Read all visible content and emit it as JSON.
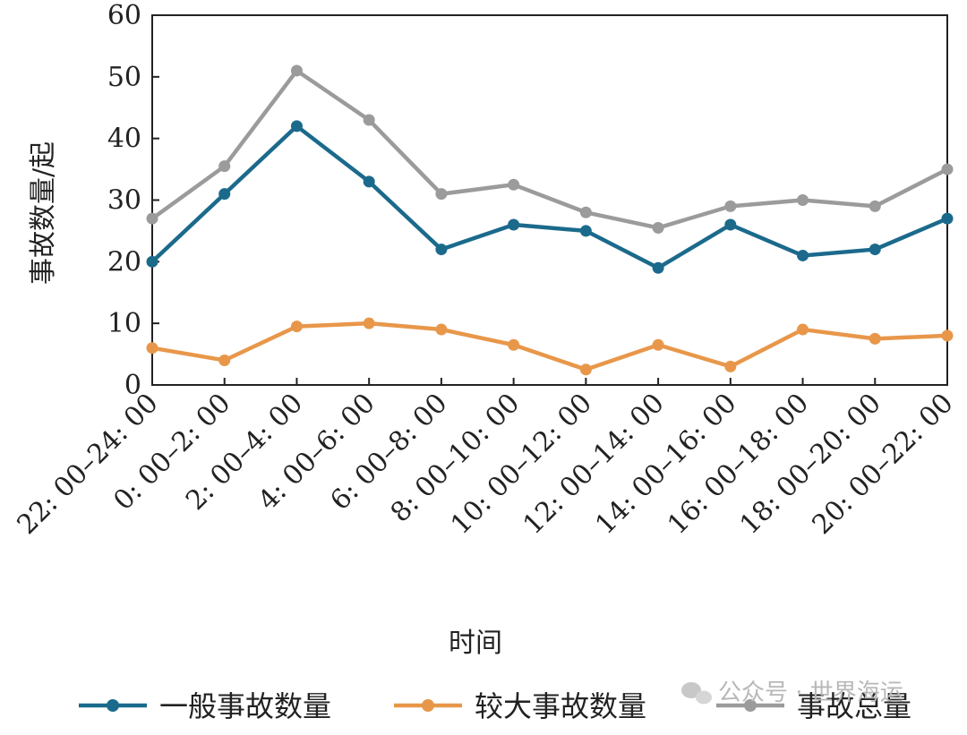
{
  "chart_data": {
    "type": "line",
    "categories": [
      "22: 00–24: 00",
      "0: 00–2: 00",
      "2: 00–4: 00",
      "4: 00–6: 00",
      "6: 00–8: 00",
      "8: 00–10: 00",
      "10: 00–12: 00",
      "12: 00–14: 00",
      "14: 00–16: 00",
      "16: 00–18: 00",
      "18: 00–20: 00",
      "20: 00–22: 00"
    ],
    "series": [
      {
        "name": "一般事故数量",
        "color": "#1b6a8c",
        "values": [
          20,
          31,
          42,
          33,
          22,
          26,
          25,
          19,
          26,
          21,
          22,
          27
        ]
      },
      {
        "name": "较大事故数量",
        "color": "#e8974a",
        "values": [
          6,
          4,
          9.5,
          10,
          9,
          6.5,
          2.5,
          6.5,
          3,
          9,
          7.5,
          8
        ]
      },
      {
        "name": "事故总量",
        "color": "#9b9b9b",
        "values": [
          27,
          35.5,
          51,
          43,
          31,
          32.5,
          28,
          25.5,
          29,
          30,
          29,
          35
        ]
      }
    ],
    "xlabel": "时间",
    "ylabel": "事故数量/起",
    "ylim": [
      0,
      60
    ],
    "yticks": [
      "0",
      "10",
      "20",
      "30",
      "40",
      "50",
      "60"
    ],
    "grid": false,
    "legend_position": "bottom"
  },
  "watermark": {
    "icon": "wechat-icon",
    "text": "公众号 · 世界海运"
  }
}
